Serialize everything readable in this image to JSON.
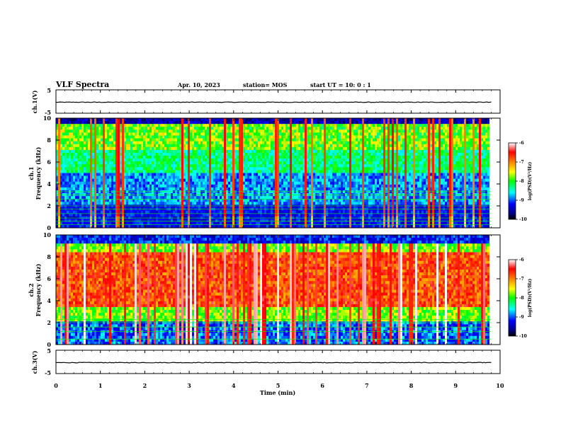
{
  "header": {
    "title": "VLF Spectra",
    "date": "Apr. 10, 2023",
    "station": "station= MOS",
    "start": "start  UT =   10: 0  : 1"
  },
  "chart_data": [
    {
      "type": "line",
      "name": "ch1-voltage",
      "ylabel": "ch.1(V)",
      "ylim": [
        -5,
        5
      ],
      "yticks": [
        "5",
        "-5"
      ],
      "x": [
        0,
        1,
        2,
        3,
        4,
        5,
        6,
        7,
        8,
        9,
        9.8
      ],
      "values": [
        -0.3,
        -0.3,
        -0.3,
        -0.3,
        -0.3,
        -0.3,
        -0.3,
        -0.3,
        -0.3,
        -0.3,
        -0.3
      ],
      "xlim": [
        0,
        10
      ]
    },
    {
      "type": "heatmap",
      "name": "ch1-spectrogram",
      "ylabel_line1": "ch.1",
      "ylabel_line2": "Frequency (kHz)",
      "ylim": [
        0,
        10
      ],
      "yticks": [
        "0",
        "2",
        "4",
        "6",
        "8",
        "10"
      ],
      "xlim": [
        0,
        10
      ],
      "data_end_min": 9.8,
      "colorbar": {
        "label": "log(PSD)(V²/Hz)",
        "range": [
          -10,
          -6
        ],
        "ticks": [
          "-6",
          "-7",
          "-8",
          "-9",
          "-10"
        ]
      }
    },
    {
      "type": "heatmap",
      "name": "ch2-spectrogram",
      "ylabel_line1": "ch.2",
      "ylabel_line2": "Frequency (kHz)",
      "ylim": [
        0,
        10
      ],
      "yticks": [
        "0",
        "2",
        "4",
        "6",
        "8",
        "10"
      ],
      "xlim": [
        0,
        10
      ],
      "data_end_min": 9.8,
      "colorbar": {
        "label": "log(PSD)(V²/Hz)",
        "range": [
          -10,
          -6
        ],
        "ticks": [
          "-6",
          "-7",
          "-8",
          "-9",
          "-10"
        ]
      }
    },
    {
      "type": "line",
      "name": "ch3-voltage",
      "ylabel": "ch.3(V)",
      "ylim": [
        -5,
        5
      ],
      "yticks": [
        "5",
        "-5"
      ],
      "x": [
        0,
        1,
        2,
        3,
        4,
        5,
        6,
        7,
        8,
        9,
        9.8
      ],
      "values": [
        -0.3,
        -0.3,
        -0.3,
        -0.3,
        -0.3,
        -0.3,
        -0.3,
        -0.3,
        -0.3,
        -0.3,
        -0.3
      ],
      "xlim": [
        0,
        10
      ]
    }
  ],
  "xaxis": {
    "label": "Time  (min)",
    "ticks": [
      "0",
      "1",
      "2",
      "3",
      "4",
      "5",
      "6",
      "7",
      "8",
      "9",
      "10"
    ]
  }
}
